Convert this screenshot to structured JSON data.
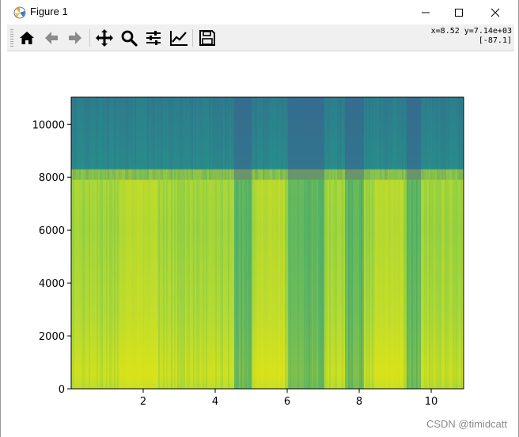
{
  "window": {
    "title": "Figure 1",
    "icon": "matplotlib-figure-icon",
    "controls": [
      "minimize-icon",
      "maximize-icon",
      "close-icon"
    ]
  },
  "toolbar": {
    "buttons": [
      {
        "name": "home-button",
        "icon": "home-icon"
      },
      {
        "name": "back-button",
        "icon": "arrow-left-icon"
      },
      {
        "name": "forward-button",
        "icon": "arrow-right-icon"
      },
      {
        "name": "pan-button",
        "icon": "move-icon"
      },
      {
        "name": "zoom-button",
        "icon": "magnifier-icon"
      },
      {
        "name": "configure-subplots-button",
        "icon": "sliders-icon"
      },
      {
        "name": "edit-axes-button",
        "icon": "line-chart-icon"
      },
      {
        "name": "save-button",
        "icon": "floppy-disk-icon"
      }
    ],
    "coords_line1": "x=8.52 y=7.14e+03",
    "coords_line2": "[-87.1]"
  },
  "chart_data": {
    "type": "heatmap",
    "xlim": [
      0,
      10.9
    ],
    "ylim": [
      0,
      11025
    ],
    "x_ticks": [
      2,
      4,
      6,
      8,
      10
    ],
    "x_tick_labels": [
      "2",
      "4",
      "6",
      "8",
      "10"
    ],
    "y_ticks": [
      0,
      2000,
      4000,
      6000,
      8000,
      10000
    ],
    "y_tick_labels": [
      "0",
      "2000",
      "4000",
      "6000",
      "8000",
      "10000"
    ],
    "colormap": "viridis",
    "band_cutoff": 7900,
    "grid": false
  },
  "watermark": "CSDN @timidcatt"
}
